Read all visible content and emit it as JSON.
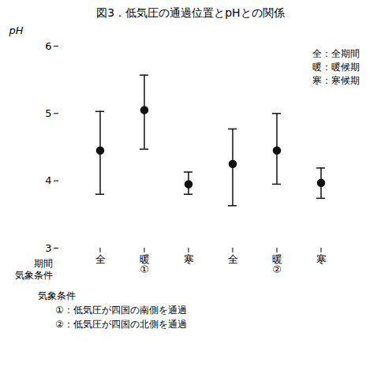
{
  "chart_data": {
    "type": "errorbar",
    "title": "図3．低気圧の通過位置とpHとの関係",
    "xlabel": "期間\n気象条件",
    "ylabel": "pH",
    "categories": [
      "全",
      "暖\n①",
      "寒",
      "全",
      "暖\n②",
      "寒"
    ],
    "values": [
      4.45,
      5.05,
      3.95,
      4.25,
      4.45,
      3.97
    ],
    "error_upper": [
      0.58,
      0.52,
      0.18,
      0.52,
      0.55,
      0.22
    ],
    "error_lower": [
      0.65,
      0.58,
      0.15,
      0.62,
      0.5,
      0.23
    ],
    "color": "#111111",
    "marker": "circle",
    "ylim": [
      3,
      6
    ],
    "yticks": [
      3,
      4,
      5,
      6
    ],
    "grid": false,
    "annotations": [
      "全：全期間\n暖：暖候期\n寒：寒候期",
      "気象条件",
      "①：低気圧が四国の南側を通過",
      "②：低気圧が四国の北側を通過"
    ]
  }
}
